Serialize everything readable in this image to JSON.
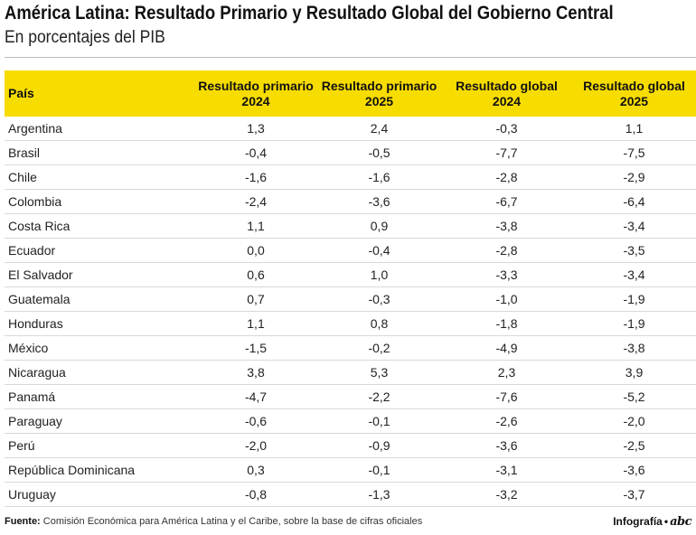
{
  "title": "América Latina: Resultado Primario y Resultado Global del Gobierno Central",
  "subtitle": "En porcentajes del PIB",
  "headers": {
    "country": "País",
    "rp2024_a": "Resultado primario",
    "rp2024_b": "2024",
    "rp2025_a": "Resultado primario",
    "rp2025_b": "2025",
    "rg2024_a": "Resultado global",
    "rg2024_b": "2024",
    "rg2025_a": "Resultado global",
    "rg2025_b": "2025"
  },
  "chart_data": {
    "type": "table",
    "columns": [
      "País",
      "Resultado primario 2024",
      "Resultado primario 2025",
      "Resultado global 2024",
      "Resultado global 2025"
    ],
    "rows": [
      [
        "Argentina",
        "1,3",
        "2,4",
        "-0,3",
        "1,1"
      ],
      [
        "Brasil",
        "-0,4",
        "-0,5",
        "-7,7",
        "-7,5"
      ],
      [
        "Chile",
        "-1,6",
        "-1,6",
        "-2,8",
        "-2,9"
      ],
      [
        "Colombia",
        "-2,4",
        "-3,6",
        "-6,7",
        "-6,4"
      ],
      [
        "Costa Rica",
        "1,1",
        "0,9",
        "-3,8",
        "-3,4"
      ],
      [
        "Ecuador",
        "0,0",
        "-0,4",
        "-2,8",
        "-3,5"
      ],
      [
        "El Salvador",
        "0,6",
        "1,0",
        "-3,3",
        "-3,4"
      ],
      [
        "Guatemala",
        "0,7",
        "-0,3",
        "-1,0",
        "-1,9"
      ],
      [
        "Honduras",
        "1,1",
        "0,8",
        "-1,8",
        "-1,9"
      ],
      [
        "México",
        "-1,5",
        "-0,2",
        "-4,9",
        "-3,8"
      ],
      [
        "Nicaragua",
        "3,8",
        "5,3",
        "2,3",
        "3,9"
      ],
      [
        "Panamá",
        "-4,7",
        "-2,2",
        "-7,6",
        "-5,2"
      ],
      [
        "Paraguay",
        "-0,6",
        "-0,1",
        "-2,6",
        "-2,0"
      ],
      [
        "Perú",
        "-2,0",
        "-0,9",
        "-3,6",
        "-2,5"
      ],
      [
        "República Dominicana",
        "0,3",
        "-0,1",
        "-3,1",
        "-3,6"
      ],
      [
        "Uruguay",
        "-0,8",
        "-1,3",
        "-3,2",
        "-3,7"
      ]
    ]
  },
  "footer": {
    "source_label": "Fuente:",
    "source_text": "Comisión Económica para América Latina y el Caribe, sobre la base de cifras oficiales",
    "credit": "Infografía",
    "dot": "•",
    "logo": "abc"
  },
  "colors": {
    "header_bg": "#f7dc00",
    "row_divider": "#d8d8d8"
  }
}
